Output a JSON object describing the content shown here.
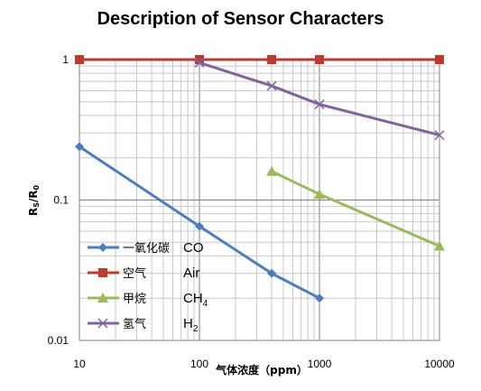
{
  "chart_data": {
    "type": "line",
    "title": "Description of Sensor Characters",
    "xlabel": "气体浓度（ppm）",
    "ylabel": "Rs/R0",
    "x_scale": "log",
    "y_scale": "log",
    "xlim": [
      10,
      10000
    ],
    "ylim": [
      0.01,
      1
    ],
    "x_tick_labels": [
      "10",
      "100",
      "1000",
      "10000"
    ],
    "y_tick_labels": [
      "0.01",
      "0.1",
      "1"
    ],
    "grid": true,
    "legend_position": "bottom-left",
    "series": [
      {
        "name": "一氧化碳",
        "formula": "CO",
        "color": "#4a7ebf",
        "marker": "diamond",
        "points": [
          [
            10,
            0.24
          ],
          [
            100,
            0.065
          ],
          [
            400,
            0.03
          ],
          [
            1000,
            0.02
          ]
        ]
      },
      {
        "name": "空气",
        "formula": "Air",
        "color": "#c0392b",
        "marker": "square",
        "points": [
          [
            10,
            1.0
          ],
          [
            100,
            1.0
          ],
          [
            400,
            1.0
          ],
          [
            1000,
            1.0
          ],
          [
            10000,
            1.0
          ]
        ]
      },
      {
        "name": "甲烷",
        "formula": "CH4",
        "color": "#9bbb59",
        "marker": "triangle",
        "points": [
          [
            400,
            0.16
          ],
          [
            1000,
            0.11
          ],
          [
            10000,
            0.047
          ]
        ]
      },
      {
        "name": "氢气",
        "formula": "H2",
        "color": "#8064a2",
        "marker": "x",
        "points": [
          [
            100,
            0.95
          ],
          [
            400,
            0.65
          ],
          [
            1000,
            0.48
          ],
          [
            10000,
            0.29
          ]
        ]
      }
    ]
  }
}
